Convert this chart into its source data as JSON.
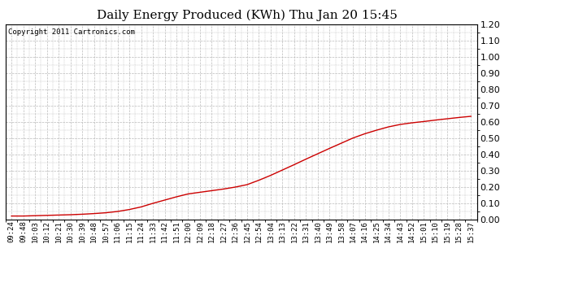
{
  "title": "Daily Energy Produced (KWh) Thu Jan 20 15:45",
  "copyright_text": "Copyright 2011 Cartronics.com",
  "line_color": "#cc0000",
  "background_color": "#ffffff",
  "plot_background": "#ffffff",
  "grid_color": "#bbbbbb",
  "ylim": [
    0.0,
    1.2
  ],
  "yticks": [
    0.0,
    0.1,
    0.2,
    0.3,
    0.4,
    0.5,
    0.6,
    0.7,
    0.8,
    0.9,
    1.0,
    1.1,
    1.2
  ],
  "x_labels": [
    "09:24",
    "09:48",
    "10:03",
    "10:12",
    "10:21",
    "10:30",
    "10:39",
    "10:48",
    "10:57",
    "11:06",
    "11:15",
    "11:24",
    "11:33",
    "11:42",
    "11:51",
    "12:00",
    "12:09",
    "12:18",
    "12:27",
    "12:36",
    "12:45",
    "12:54",
    "13:04",
    "13:13",
    "13:22",
    "13:31",
    "13:40",
    "13:49",
    "13:58",
    "14:07",
    "14:16",
    "14:25",
    "14:34",
    "14:43",
    "14:52",
    "15:01",
    "15:10",
    "15:19",
    "15:28",
    "15:37"
  ],
  "y_values": [
    0.022,
    0.022,
    0.024,
    0.026,
    0.028,
    0.03,
    0.033,
    0.037,
    0.042,
    0.05,
    0.062,
    0.078,
    0.1,
    0.12,
    0.14,
    0.158,
    0.168,
    0.178,
    0.188,
    0.2,
    0.215,
    0.242,
    0.272,
    0.305,
    0.338,
    0.372,
    0.405,
    0.438,
    0.47,
    0.502,
    0.528,
    0.55,
    0.57,
    0.585,
    0.595,
    0.603,
    0.612,
    0.62,
    0.628,
    0.635
  ],
  "title_fontsize": 11,
  "tick_fontsize": 6.5,
  "copyright_fontsize": 6.5,
  "ytick_fontsize": 8
}
